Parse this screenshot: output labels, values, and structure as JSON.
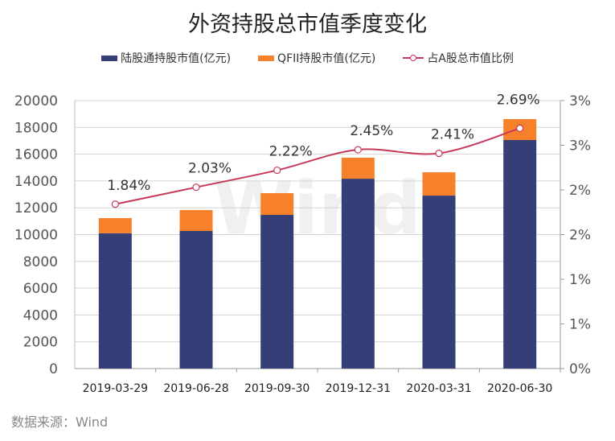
{
  "chart_data": {
    "type": "bar",
    "title": "外资持股总市值季度变化",
    "categories": [
      "2019-03-29",
      "2019-06-28",
      "2019-09-30",
      "2019-12-31",
      "2020-03-31",
      "2020-06-30"
    ],
    "series": [
      {
        "name": "陆股通持股市值(亿元)",
        "type": "bar",
        "stack": "total",
        "color": "#353e77",
        "values": [
          10100,
          10270,
          11470,
          14170,
          12910,
          17060
        ]
      },
      {
        "name": "QFII持股市值(亿元)",
        "type": "bar",
        "stack": "total",
        "color": "#f7812b",
        "values": [
          1130,
          1560,
          1620,
          1570,
          1740,
          1560
        ]
      },
      {
        "name": "占A股总市值比例",
        "type": "line",
        "axis": "right",
        "color": "#c8385a",
        "values": [
          1.84,
          2.03,
          2.22,
          2.45,
          2.41,
          2.69
        ],
        "labels": [
          "1.84%",
          "2.03%",
          "2.22%",
          "2.45%",
          "2.41%",
          "2.69%"
        ]
      }
    ],
    "ylim": [
      0,
      20000
    ],
    "yticks": [
      "0",
      "2000",
      "4000",
      "6000",
      "8000",
      "10000",
      "12000",
      "14000",
      "16000",
      "18000",
      "20000"
    ],
    "y2lim": [
      0,
      3
    ],
    "y2ticks": [
      "0%",
      "1%",
      "1%",
      "2%",
      "2%",
      "3%",
      "3%"
    ],
    "grid": true,
    "legend": "top",
    "watermark": "Wind"
  },
  "source": "数据来源：Wind"
}
